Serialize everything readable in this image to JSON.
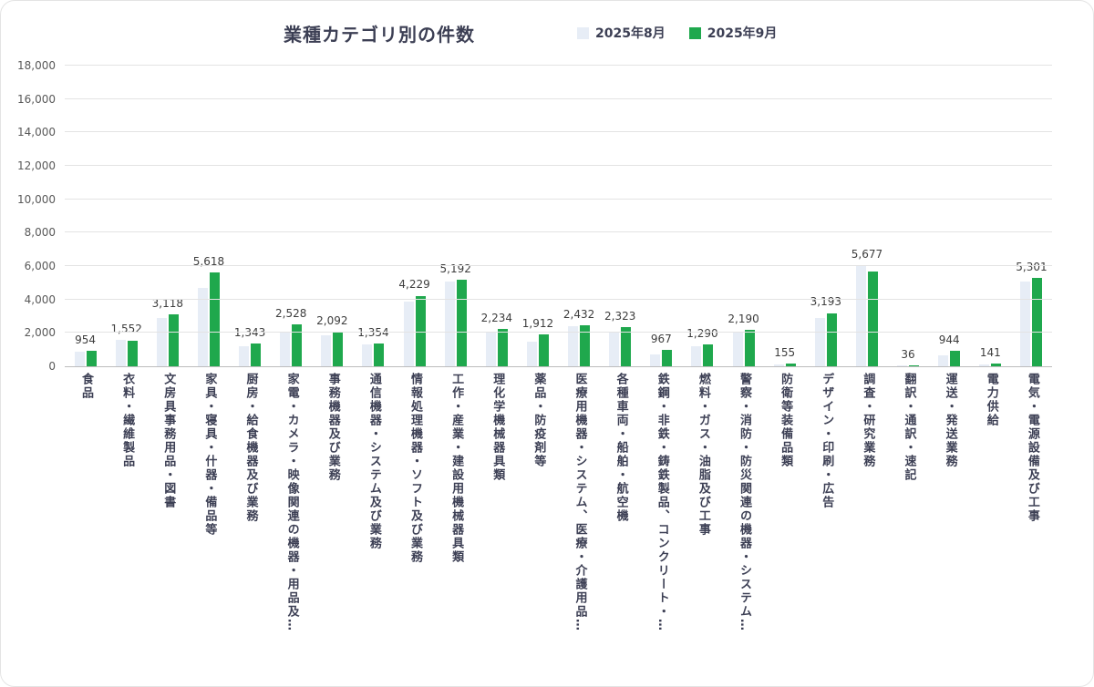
{
  "header": {
    "title": "業種カテゴリ別の件数"
  },
  "legend": [
    {
      "label": "2025年8月",
      "color": "#e7edf6"
    },
    {
      "label": "2025年9月",
      "color": "#1fa84d"
    }
  ],
  "chart_data": {
    "type": "bar",
    "title": "業種カテゴリ別の件数",
    "categories": [
      "食品",
      "衣料・繊維製品",
      "文房具事務用品・図書",
      "家具・寝具・什器・備品等",
      "厨房・給食機器及び業務",
      "家電・カメラ・映像関連の機器・用品及…",
      "事務機器及び業務",
      "通信機器・システム及び業務",
      "情報処理機器・ソフト及び業務",
      "工作・産業・建設用機械器具類",
      "理化学機械器具類",
      "薬品・防疫剤等",
      "医療用機器・システム、医療・介護用品…",
      "各種車両・船舶・航空機",
      "鉄鋼・非鉄・鋳鉄製品、コンクリート・…",
      "燃料・ガス・油脂及び工事",
      "警察・消防・防災関連の機器・システム…",
      "防衛等装備品類",
      "デザイン・印刷・広告",
      "調査・研究業務",
      "翻訳・通訳・速記",
      "運送・発送業務",
      "電力供給",
      "電気・電源設備及び工事"
    ],
    "series": [
      {
        "name": "2025年8月",
        "color": "#e7edf6",
        "labels_visible": false,
        "values": [
          900,
          1600,
          2900,
          4700,
          1200,
          2050,
          1850,
          1300,
          3850,
          5100,
          2050,
          1500,
          2400,
          2100,
          700,
          1200,
          2100,
          110,
          2900,
          6050,
          30,
          650,
          100,
          5100
        ]
      },
      {
        "name": "2025年9月",
        "color": "#1fa84d",
        "labels_visible": true,
        "values": [
          954,
          1552,
          3118,
          5618,
          1343,
          2528,
          2092,
          1354,
          4229,
          5192,
          2234,
          1912,
          2432,
          2323,
          967,
          1290,
          2190,
          155,
          3193,
          5677,
          36,
          944,
          141,
          5301
        ]
      }
    ],
    "data_labels": [
      "954",
      "1,552",
      "3,118",
      "5,618",
      "1,343",
      "2,528",
      "2,092",
      "1,354",
      "4,229",
      "5,192",
      "2,234",
      "1,912",
      "2,432",
      "2,323",
      "967",
      "1,290",
      "2,190",
      "155",
      "3,193",
      "5,677",
      "36",
      "944",
      "141",
      "5,301"
    ],
    "xlabel": "",
    "ylabel": "",
    "ylim": [
      0,
      18000
    ],
    "ytick_step": 2000,
    "yticks": [
      "0",
      "2,000",
      "4,000",
      "6,000",
      "8,000",
      "10,000",
      "12,000",
      "14,000",
      "16,000",
      "18,000"
    ],
    "grid": true,
    "legend_position": "top"
  }
}
